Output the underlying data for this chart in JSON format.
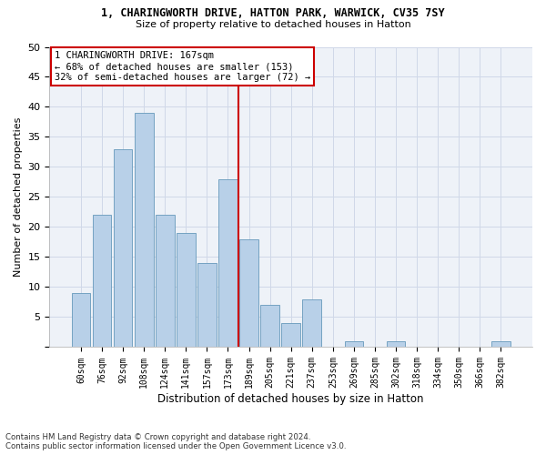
{
  "title_line1": "1, CHARINGWORTH DRIVE, HATTON PARK, WARWICK, CV35 7SY",
  "title_line2": "Size of property relative to detached houses in Hatton",
  "xlabel": "Distribution of detached houses by size in Hatton",
  "ylabel": "Number of detached properties",
  "bar_color": "#b8d0e8",
  "bar_edge_color": "#6699bb",
  "categories": [
    "60sqm",
    "76sqm",
    "92sqm",
    "108sqm",
    "124sqm",
    "141sqm",
    "157sqm",
    "173sqm",
    "189sqm",
    "205sqm",
    "221sqm",
    "237sqm",
    "253sqm",
    "269sqm",
    "285sqm",
    "302sqm",
    "318sqm",
    "334sqm",
    "350sqm",
    "366sqm",
    "382sqm"
  ],
  "values": [
    9,
    22,
    33,
    39,
    22,
    19,
    14,
    28,
    18,
    7,
    4,
    8,
    0,
    1,
    0,
    1,
    0,
    0,
    0,
    0,
    1
  ],
  "vline_x": 7.5,
  "vline_color": "#cc0000",
  "annotation_text": "1 CHARINGWORTH DRIVE: 167sqm\n← 68% of detached houses are smaller (153)\n32% of semi-detached houses are larger (72) →",
  "annotation_box_color": "#ffffff",
  "annotation_box_edge_color": "#cc0000",
  "ylim": [
    0,
    50
  ],
  "yticks": [
    0,
    5,
    10,
    15,
    20,
    25,
    30,
    35,
    40,
    45,
    50
  ],
  "footnote_line1": "Contains HM Land Registry data © Crown copyright and database right 2024.",
  "footnote_line2": "Contains public sector information licensed under the Open Government Licence v3.0.",
  "grid_color": "#d0d8e8",
  "background_color": "#eef2f8"
}
